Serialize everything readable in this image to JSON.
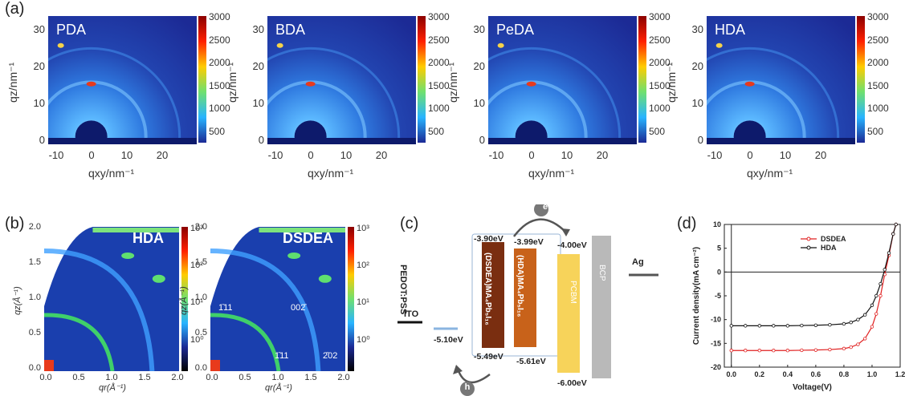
{
  "panel_a": {
    "label": "(a)",
    "maps": [
      {
        "name": "PDA"
      },
      {
        "name": "BDA"
      },
      {
        "name": "PeDA"
      },
      {
        "name": "HDA"
      }
    ],
    "y_ticks": [
      "30",
      "20",
      "10",
      "0"
    ],
    "x_ticks": [
      "-10",
      "0",
      "10",
      "20"
    ],
    "ylabel": "qz/nm⁻¹",
    "xlabel": "qxy/nm⁻¹",
    "colorbar_ticks": [
      "3000",
      "2500",
      "2000",
      "1500",
      "1000",
      "500"
    ]
  },
  "panel_b": {
    "label": "(b)",
    "maps": [
      {
        "name": "HDA"
      },
      {
        "name": "DSDEA",
        "annotations": [
          "1̄11",
          "002̄",
          "1̄11",
          "2̄02"
        ]
      }
    ],
    "y_ticks": [
      "2.0",
      "1.5",
      "1.0",
      "0.5",
      "0.0"
    ],
    "x_ticks": [
      "0.0",
      "0.5",
      "1.0",
      "1.5",
      "2.0"
    ],
    "ylabel": "qz(Å⁻¹)",
    "xlabel": "qr(Å⁻¹)",
    "colorbar_ticks": [
      "10³",
      "10²",
      "10¹",
      "10⁰"
    ]
  },
  "panel_c": {
    "label": "(c)",
    "layers": [
      {
        "name": "ITO"
      },
      {
        "name": "PEDOT:PSS",
        "energy": "-5.10eV"
      },
      {
        "name": "(DSDEA)MA₄Pb₅I₁₆",
        "top": "-3.90eV",
        "bottom": "-5.49eV"
      },
      {
        "name": "(HDA)MA₄Pb₅I₁₆",
        "top": "-3.99eV",
        "bottom": "-5.61eV"
      },
      {
        "name": "PCBM",
        "top": "-4.00eV",
        "bottom": "-6.00eV"
      },
      {
        "name": "BCP"
      },
      {
        "name": "Ag"
      }
    ],
    "electron": "e",
    "hole": "h"
  },
  "panel_d": {
    "label": "(d)",
    "chart_data": {
      "type": "line",
      "xlabel": "Voltage(V)",
      "ylabel": "Current density(mA cm⁻²)",
      "xlim": [
        -0.05,
        1.2
      ],
      "ylim": [
        -20,
        10
      ],
      "x_ticks": [
        "0.0",
        "0.2",
        "0.4",
        "0.6",
        "0.8",
        "1.0",
        "1.2"
      ],
      "y_ticks": [
        "10",
        "5",
        "0",
        "-5",
        "-10",
        "-15",
        "-20"
      ],
      "legend": "top-right",
      "series": [
        {
          "name": "DSDEA",
          "color": "#e02020",
          "x": [
            0,
            0.1,
            0.2,
            0.3,
            0.4,
            0.5,
            0.6,
            0.7,
            0.8,
            0.85,
            0.9,
            0.95,
            1.0,
            1.03,
            1.06,
            1.09,
            1.12,
            1.15,
            1.17
          ],
          "y": [
            -16.5,
            -16.5,
            -16.5,
            -16.5,
            -16.5,
            -16.45,
            -16.4,
            -16.3,
            -16.1,
            -15.8,
            -15.2,
            -14.0,
            -11.5,
            -8.8,
            -5.0,
            -0.5,
            3.5,
            8.0,
            10.0
          ]
        },
        {
          "name": "HDA",
          "color": "#111111",
          "x": [
            0,
            0.1,
            0.2,
            0.3,
            0.4,
            0.5,
            0.6,
            0.7,
            0.8,
            0.85,
            0.9,
            0.95,
            1.0,
            1.03,
            1.06,
            1.09,
            1.12,
            1.15,
            1.17
          ],
          "y": [
            -11.3,
            -11.3,
            -11.3,
            -11.3,
            -11.3,
            -11.25,
            -11.2,
            -11.1,
            -10.9,
            -10.6,
            -10.0,
            -9.0,
            -7.0,
            -5.0,
            -2.5,
            0.5,
            4.0,
            8.0,
            10.0
          ]
        }
      ]
    }
  }
}
